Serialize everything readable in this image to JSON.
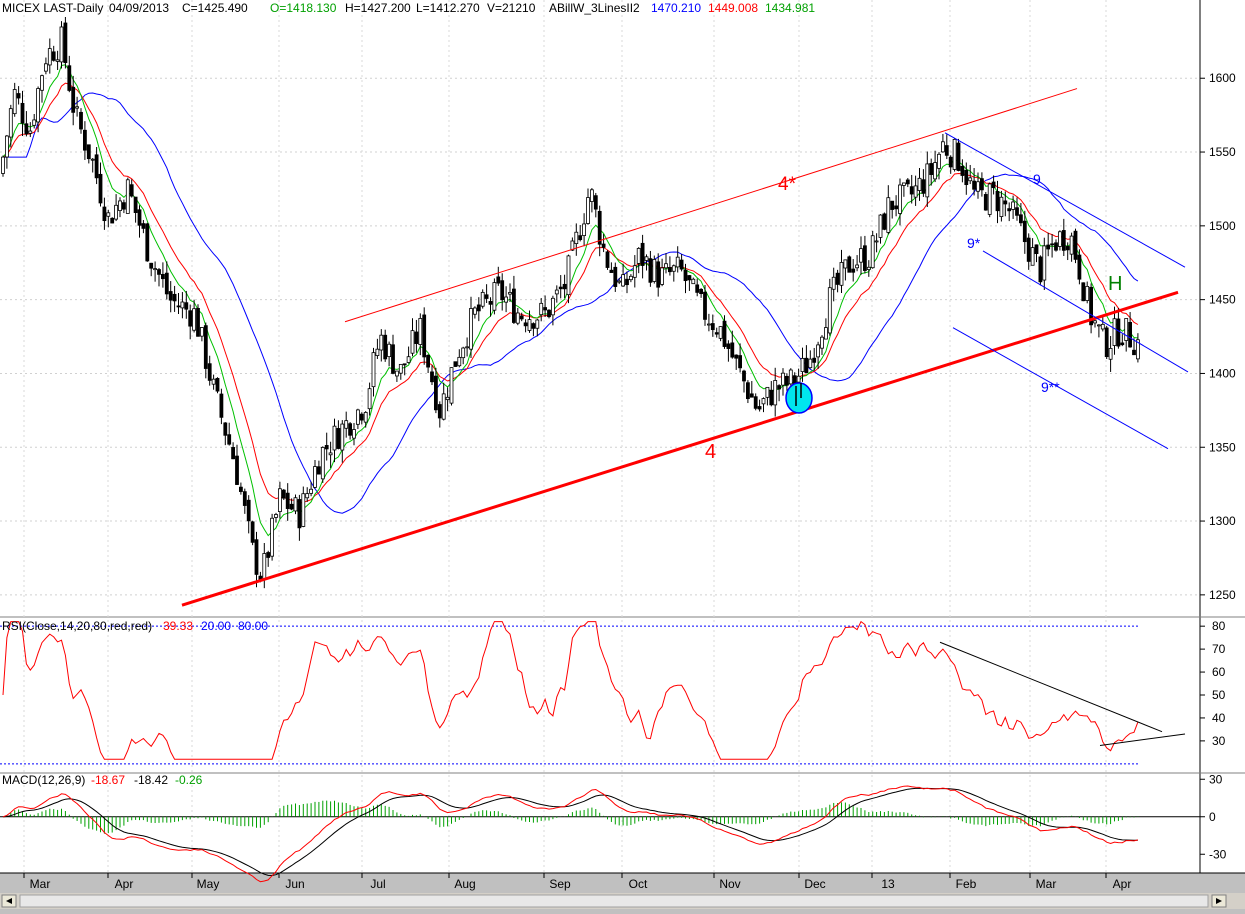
{
  "header": {
    "symbol": "MICEX LAST-Daily",
    "date": "04/09/2013",
    "close": "C=1425.490",
    "open": "O=1418.130",
    "high": "H=1427.200",
    "low": "L=1412.270",
    "volume": "V=21210",
    "indicator_name": "ABillW_3LinesII2",
    "ind_blue": "1470.210",
    "ind_red": "1449.008",
    "ind_green": "1434.981"
  },
  "rsi_header": {
    "label": "RSI(Close,14,20,80,red,red)",
    "value": "39.33",
    "low": "20.00",
    "high": "80.00"
  },
  "macd_header": {
    "label": "MACD(12,26,9)",
    "macd": "-18.67",
    "signal": "-18.42",
    "hist": "-0.26"
  },
  "annotations": {
    "l4": "4",
    "l4star": "4*",
    "l9": "9",
    "l9star": "9*",
    "l9dstar": "9**",
    "lH": "H"
  },
  "colors": {
    "background": "#ffffff",
    "frame": "#c0c0c0",
    "price": "#000000",
    "red": "#ff0000",
    "green": "#00c000",
    "blue": "#0000ff",
    "h_label": "#008000"
  },
  "chart_data": [
    {
      "type": "candlestick",
      "title": "MICEX LAST-Daily",
      "x_ticks": [
        "Mar",
        "Apr",
        "May",
        "Jun",
        "Jul",
        "Aug",
        "Sep",
        "Oct",
        "Nov",
        "Dec",
        "13",
        "Feb",
        "Mar",
        "Apr"
      ],
      "ylim": [
        1235,
        1650
      ],
      "y_ticks": [
        1250,
        1300,
        1350,
        1400,
        1450,
        1500,
        1550,
        1600
      ],
      "approx_close_path": [
        {
          "x": "Mar",
          "y": 1560
        },
        {
          "x": "mid-Mar",
          "y": 1610
        },
        {
          "x": "Apr",
          "y": 1530
        },
        {
          "x": "May",
          "y": 1420
        },
        {
          "x": "late-May",
          "y": 1260
        },
        {
          "x": "Jun",
          "y": 1300
        },
        {
          "x": "Jul",
          "y": 1420
        },
        {
          "x": "Aug",
          "y": 1440
        },
        {
          "x": "late-Aug",
          "y": 1440
        },
        {
          "x": "mid-Sep",
          "y": 1530
        },
        {
          "x": "Oct",
          "y": 1470
        },
        {
          "x": "Nov",
          "y": 1420
        },
        {
          "x": "mid-Nov",
          "y": 1370
        },
        {
          "x": "Dec",
          "y": 1420
        },
        {
          "x": "13",
          "y": 1490
        },
        {
          "x": "late-Jan",
          "y": 1560
        },
        {
          "x": "Feb",
          "y": 1520
        },
        {
          "x": "Mar",
          "y": 1490
        },
        {
          "x": "late-Mar",
          "y": 1430
        },
        {
          "x": "Apr",
          "y": 1425
        }
      ],
      "trendlines": [
        {
          "label": "4",
          "points": [
            {
              "x": "late-Feb",
              "y": 1243
            },
            {
              "x": "mid-Apr",
              "y": 1455
            }
          ]
        },
        {
          "label": "4*",
          "points": [
            {
              "x": "late-Jun",
              "y": 1435
            },
            {
              "x": "early-Apr",
              "y": 1593
            }
          ]
        },
        {
          "label": "9",
          "points": [
            {
              "x": "late-Jan",
              "y": 1563
            },
            {
              "x": "mid-Apr",
              "y": 1472
            }
          ]
        },
        {
          "label": "9*",
          "points": [
            {
              "x": "Feb",
              "y": 1483
            },
            {
              "x": "mid-Apr",
              "y": 1401
            }
          ]
        },
        {
          "label": "9**",
          "points": [
            {
              "x": "Feb",
              "y": 1431
            },
            {
              "x": "mid-Apr",
              "y": 1349
            }
          ]
        }
      ],
      "moving_averages": [
        {
          "name": "1470.210",
          "color": "blue"
        },
        {
          "name": "1449.008",
          "color": "red"
        },
        {
          "name": "1434.981",
          "color": "green"
        }
      ]
    },
    {
      "type": "line",
      "title": "RSI(Close,14,20,80,red,red)",
      "ylim": [
        18,
        82
      ],
      "y_ticks": [
        30,
        40,
        50,
        60,
        70,
        80
      ],
      "reference_lines": [
        20,
        80
      ],
      "last_value": 39.33
    },
    {
      "type": "line",
      "title": "MACD(12,26,9)",
      "ylim": [
        -45,
        35
      ],
      "y_ticks": [
        -30,
        0,
        30
      ],
      "last_values": {
        "macd": -18.67,
        "signal": -18.42,
        "hist": -0.26
      }
    }
  ]
}
